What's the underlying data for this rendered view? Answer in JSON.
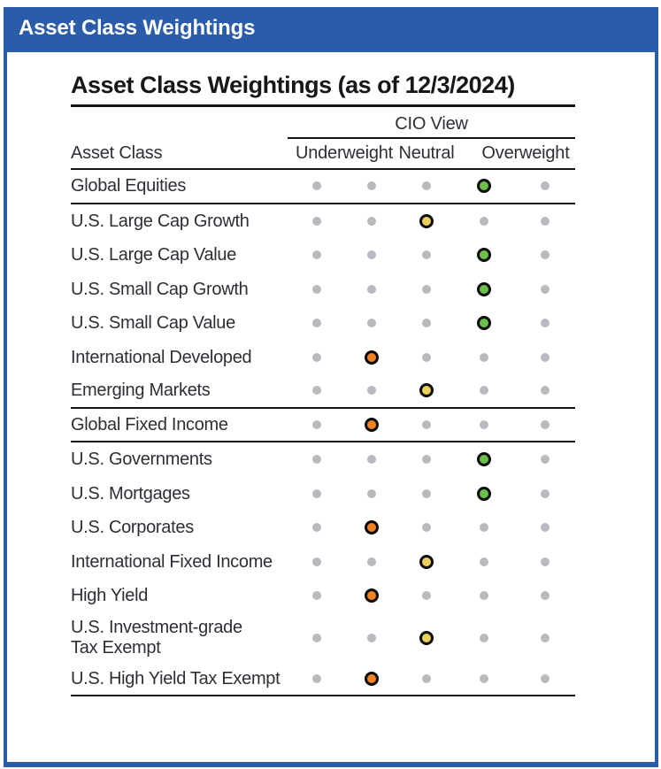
{
  "colors": {
    "blue": "#2a5caa",
    "green": "#6bbf4b",
    "yellow": "#ecd05a",
    "orange": "#f08222",
    "gray_dot": "#b8bac0"
  },
  "header_bar": {
    "title": "Asset Class Weightings"
  },
  "panel": {
    "title": "Asset Class Weightings (as of 12/3/2024)",
    "table": {
      "group_header": "CIO View",
      "row_header": "Asset Class",
      "col_headers": [
        "Underweight",
        "Neutral",
        "Overweight"
      ],
      "scale_positions": 5,
      "rows": [
        {
          "label": "Global Equities",
          "position": 4,
          "view": "Overweight",
          "color": "green",
          "divider_below": true
        },
        {
          "label": "U.S. Large Cap Growth",
          "position": 3,
          "view": "Neutral",
          "color": "yellow"
        },
        {
          "label": "U.S. Large Cap Value",
          "position": 4,
          "view": "Overweight",
          "color": "green"
        },
        {
          "label": "U.S. Small Cap Growth",
          "position": 4,
          "view": "Overweight",
          "color": "green"
        },
        {
          "label": "U.S. Small Cap Value",
          "position": 4,
          "view": "Overweight",
          "color": "green"
        },
        {
          "label": "International Developed",
          "position": 2,
          "view": "Underweight",
          "color": "orange"
        },
        {
          "label": "Emerging Markets",
          "position": 3,
          "view": "Neutral",
          "color": "yellow",
          "divider_below": true
        },
        {
          "label": "Global Fixed Income",
          "position": 2,
          "view": "Underweight",
          "color": "orange",
          "divider_below": true
        },
        {
          "label": "U.S. Governments",
          "position": 4,
          "view": "Overweight",
          "color": "green"
        },
        {
          "label": "U.S. Mortgages",
          "position": 4,
          "view": "Overweight",
          "color": "green"
        },
        {
          "label": "U.S. Corporates",
          "position": 2,
          "view": "Underweight",
          "color": "orange"
        },
        {
          "label": "International Fixed Income",
          "position": 3,
          "view": "Neutral",
          "color": "yellow"
        },
        {
          "label": "High Yield",
          "position": 2,
          "view": "Underweight",
          "color": "orange"
        },
        {
          "label": "U.S. Investment-grade\nTax Exempt",
          "position": 3,
          "view": "Neutral",
          "color": "yellow",
          "two_line": true
        },
        {
          "label": "U.S. High Yield Tax Exempt",
          "position": 2,
          "view": "Underweight",
          "color": "orange",
          "divider_below": true
        }
      ]
    }
  },
  "chart_data": {
    "type": "table",
    "title": "Asset Class Weightings (as of 12/3/2024)",
    "columns": [
      "Asset Class",
      "CIO View (1=most underweight, 3=neutral, 5=most overweight)"
    ],
    "categories": [
      "Global Equities",
      "U.S. Large Cap Growth",
      "U.S. Large Cap Value",
      "U.S. Small Cap Growth",
      "U.S. Small Cap Value",
      "International Developed",
      "Emerging Markets",
      "Global Fixed Income",
      "U.S. Governments",
      "U.S. Mortgages",
      "U.S. Corporates",
      "International Fixed Income",
      "High Yield",
      "U.S. Investment-grade Tax Exempt",
      "U.S. High Yield Tax Exempt"
    ],
    "values": [
      4,
      3,
      4,
      4,
      4,
      2,
      3,
      2,
      4,
      4,
      2,
      3,
      2,
      3,
      2
    ],
    "legend": [
      "Underweight",
      "Neutral",
      "Overweight"
    ]
  }
}
